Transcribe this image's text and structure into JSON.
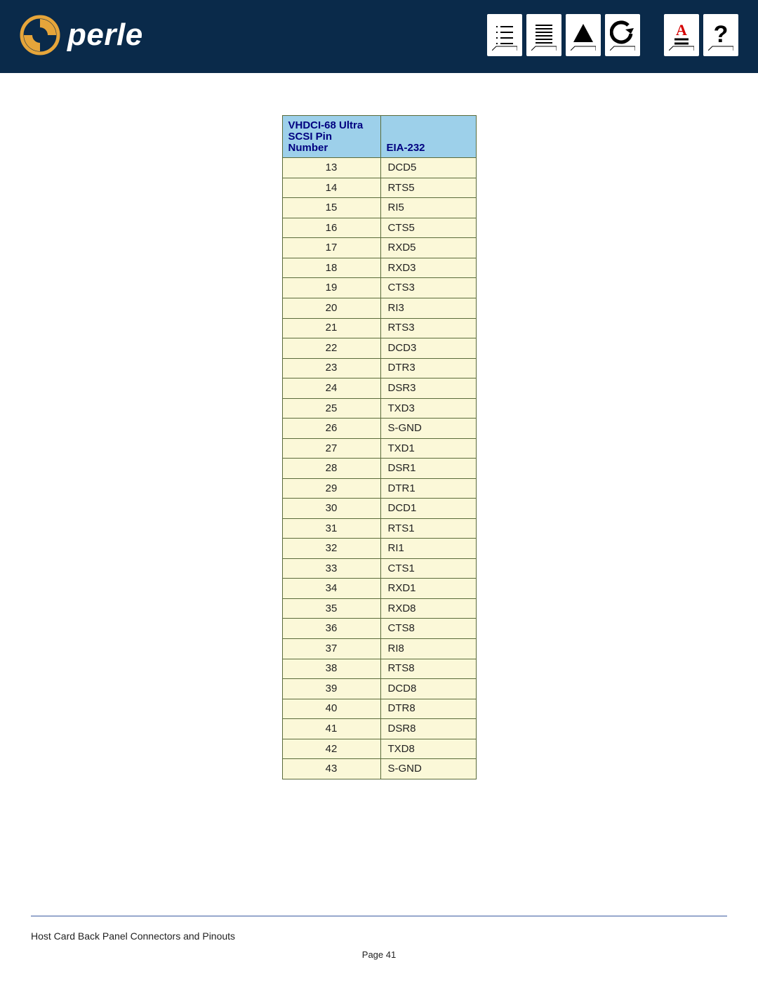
{
  "header": {
    "brand": "perle"
  },
  "table": {
    "headers": {
      "pin": "VHDCI-68 Ultra SCSI Pin Number",
      "sig": "EIA-232"
    },
    "rows": [
      {
        "pin": "13",
        "sig": "DCD5"
      },
      {
        "pin": "14",
        "sig": "RTS5"
      },
      {
        "pin": "15",
        "sig": "RI5"
      },
      {
        "pin": "16",
        "sig": "CTS5"
      },
      {
        "pin": "17",
        "sig": "RXD5"
      },
      {
        "pin": "18",
        "sig": "RXD3"
      },
      {
        "pin": "19",
        "sig": "CTS3"
      },
      {
        "pin": "20",
        "sig": "RI3"
      },
      {
        "pin": "21",
        "sig": "RTS3"
      },
      {
        "pin": "22",
        "sig": "DCD3"
      },
      {
        "pin": "23",
        "sig": "DTR3"
      },
      {
        "pin": "24",
        "sig": "DSR3"
      },
      {
        "pin": "25",
        "sig": "TXD3"
      },
      {
        "pin": "26",
        "sig": "S-GND"
      },
      {
        "pin": "27",
        "sig": "TXD1"
      },
      {
        "pin": "28",
        "sig": "DSR1"
      },
      {
        "pin": "29",
        "sig": "DTR1"
      },
      {
        "pin": "30",
        "sig": "DCD1"
      },
      {
        "pin": "31",
        "sig": "RTS1"
      },
      {
        "pin": "32",
        "sig": "RI1"
      },
      {
        "pin": "33",
        "sig": "CTS1"
      },
      {
        "pin": "34",
        "sig": "RXD1"
      },
      {
        "pin": "35",
        "sig": "RXD8"
      },
      {
        "pin": "36",
        "sig": "CTS8"
      },
      {
        "pin": "37",
        "sig": "RI8"
      },
      {
        "pin": "38",
        "sig": "RTS8"
      },
      {
        "pin": "39",
        "sig": "DCD8"
      },
      {
        "pin": "40",
        "sig": "DTR8"
      },
      {
        "pin": "41",
        "sig": "DSR8"
      },
      {
        "pin": "42",
        "sig": "TXD8"
      },
      {
        "pin": "43",
        "sig": "S-GND"
      }
    ]
  },
  "footer": {
    "title": "Host Card Back Panel Connectors and Pinouts",
    "page": "Page 41"
  }
}
